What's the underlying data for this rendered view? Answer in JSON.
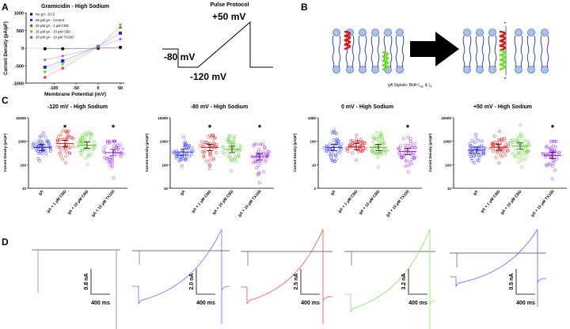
{
  "panel_labels": [
    "A",
    "B",
    "C",
    "D"
  ],
  "panel_a": {
    "title": "Gramicidin - High Sodium",
    "xlabel": "Membrane Potential (mV)",
    "ylabel": "Current Density (pA/pF)",
    "xticks": [
      "-100",
      "-50",
      "0",
      "50"
    ],
    "yticks": [
      "1000",
      "500",
      "0",
      "-500",
      "-1000"
    ]
  },
  "protocol": {
    "title": "Pulse Protocol",
    "hold": "-80 mV",
    "low": "-120 mV",
    "high": "+50 mV"
  },
  "panel_b": {
    "caption": "gA Signals: Both I",
    "sub_na": "Na",
    "amp": " & I",
    "sub_k": "K",
    "plus": "+",
    "minus": "+"
  },
  "chart_data": [
    {
      "type": "line",
      "title": "Gramicidin - High Sodium",
      "xlabel": "Membrane Potential (mV)",
      "ylabel": "Current Density (pA/pF)",
      "xlim": [
        -135,
        57
      ],
      "ylim": [
        -1000,
        1000
      ],
      "x": [
        -120,
        -80,
        0,
        50
      ],
      "legend_position": "top-left",
      "series": [
        {
          "name": "No gA - ECS",
          "color": "#000000",
          "marker": "circle",
          "values": [
            -15,
            -15,
            0,
            25
          ]
        },
        {
          "name": "26 µM gA - Control",
          "color": "#1f1fff",
          "marker": "square",
          "values": [
            -540,
            -360,
            50,
            430
          ]
        },
        {
          "name": "26 µM gA - 1 µM CBD",
          "color": "#e8262a",
          "marker": "triangle-up",
          "values": [
            -820,
            -560,
            30,
            600
          ]
        },
        {
          "name": "26 µM gA - 10 µM CBD",
          "color": "#5ccf2c",
          "marker": "triangle-down",
          "values": [
            -680,
            -450,
            40,
            660
          ]
        },
        {
          "name": "26 µM gA - 10 µM TX100",
          "color": "#a52bf0",
          "marker": "star",
          "values": [
            -330,
            -220,
            20,
            260
          ]
        }
      ]
    },
    {
      "type": "scatter",
      "title": "-120 mV - High Sodium",
      "ylabel": "Current Density (pA/pF)",
      "yscale": "log",
      "ylim": [
        10,
        10000
      ],
      "yticks": [
        "10000",
        "1000",
        "100",
        "10"
      ],
      "categories": [
        "gA",
        "gA + 1 µM CBD",
        "gA + 10 µM CBD",
        "gA + 10 µM TX100"
      ],
      "means": [
        550,
        800,
        680,
        330
      ],
      "mins": [
        150,
        120,
        100,
        27
      ],
      "maxs": [
        2300,
        2800,
        2500,
        1000
      ],
      "significant": [
        "",
        "*",
        "",
        "*"
      ]
    },
    {
      "type": "scatter",
      "title": "-80 mV - High Sodium",
      "ylabel": "Current Density (pA/pF)",
      "yscale": "log",
      "ylim": [
        10,
        10000
      ],
      "yticks": [
        "10000",
        "1000",
        "100",
        "10"
      ],
      "categories": [
        "gA",
        "gA + 1 µM CBD",
        "gA + 10 µM CBD",
        "gA + 10 µM TX100"
      ],
      "means": [
        350,
        550,
        450,
        220
      ],
      "mins": [
        90,
        70,
        55,
        17
      ],
      "maxs": [
        1500,
        1800,
        1700,
        750
      ],
      "significant": [
        "",
        "*",
        "",
        "*"
      ]
    },
    {
      "type": "scatter",
      "title": "0 mV - High Sodium",
      "ylabel": "Current Density (pA/pF)",
      "yscale": "log",
      "ylim": [
        1,
        1000
      ],
      "yticks": [
        "1000",
        "100",
        "10",
        "1"
      ],
      "categories": [
        "gA",
        "gA + 1 µM CBD",
        "gA + 10 µM CBD",
        "gA + 10 µM TX100"
      ],
      "means": [
        55,
        58,
        55,
        37
      ],
      "mins": [
        14,
        16,
        8,
        5
      ],
      "maxs": [
        300,
        180,
        230,
        150
      ],
      "significant": [
        "",
        "",
        "",
        "*"
      ]
    },
    {
      "type": "scatter",
      "title": "+50 mV - High Sodium",
      "ylabel": "Current Density (pA/pF)",
      "yscale": "log",
      "ylim": [
        10,
        10000
      ],
      "yticks": [
        "10000",
        "1000",
        "100",
        "10"
      ],
      "categories": [
        "gA",
        "gA + 1 µM CBD",
        "gA + 10 µM CBD",
        "gA + 10 µM TX100"
      ],
      "means": [
        420,
        560,
        620,
        250
      ],
      "mins": [
        120,
        120,
        80,
        25
      ],
      "maxs": [
        2000,
        2700,
        5000,
        1000
      ],
      "significant": [
        "",
        "",
        "",
        "*"
      ]
    }
  ],
  "group_colors": [
    "#3b3bff",
    "#e8262a",
    "#5ccf2c",
    "#a52bf0"
  ],
  "panel_d": {
    "traces": [
      {
        "color": "#888888",
        "current_scale": "0.8 nA",
        "time_scale": "400 ms"
      },
      {
        "color": "#6a6aff",
        "current_scale": "2.0 nA",
        "time_scale": "400 ms"
      },
      {
        "color": "#f05050",
        "current_scale": "2.5 nA",
        "time_scale": "400 ms"
      },
      {
        "color": "#8fd86a",
        "current_scale": "3.2 nA",
        "time_scale": "400 ms"
      },
      {
        "color": "#8a4cf0",
        "current_scale": "0.5 nA",
        "time_scale": "400 ms"
      }
    ]
  }
}
